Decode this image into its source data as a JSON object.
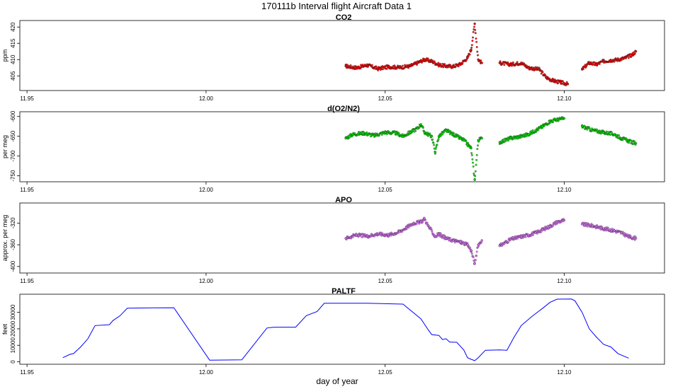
{
  "title": "170111b   Interval flight Aircraft Data 1",
  "colors": {
    "co2": "#ff0000",
    "o2n2": "#00e000",
    "apo": "#e070ff",
    "paltf": "#0000ff",
    "outline": "#202020"
  },
  "chart_data": [
    {
      "type": "scatter",
      "title": "CO2",
      "xlabel": "",
      "ylabel": "ppm",
      "xlim": [
        11.948,
        12.128
      ],
      "ylim": [
        400.5,
        422
      ],
      "x_ticks": [
        "11.95",
        "12.00",
        "12.05",
        "12.10"
      ],
      "y_ticks": [
        "405",
        "410",
        "415",
        "420"
      ],
      "series": [
        {
          "points": [
            [
              12.039,
              408.0
            ],
            [
              12.042,
              407.5
            ],
            [
              12.045,
              408.3
            ],
            [
              12.048,
              407.2
            ],
            [
              12.051,
              407.8
            ],
            [
              12.054,
              407.6
            ],
            [
              12.057,
              408.0
            ],
            [
              12.059,
              409.0
            ],
            [
              12.061,
              410.0
            ],
            [
              12.063,
              409.5
            ],
            [
              12.065,
              408.4
            ],
            [
              12.067,
              408.0
            ],
            [
              12.069,
              407.9
            ],
            [
              12.071,
              408.6
            ],
            [
              12.073,
              410.5
            ],
            [
              12.074,
              413.0
            ],
            [
              12.075,
              421.0
            ],
            [
              12.076,
              410.0
            ],
            [
              12.077,
              409.0
            ],
            [
              12.082,
              409.0
            ],
            [
              12.085,
              408.5
            ],
            [
              12.088,
              409.0
            ],
            [
              12.09,
              407.5
            ],
            [
              12.093,
              407.0
            ],
            [
              12.095,
              404.5
            ],
            [
              12.097,
              403.5
            ],
            [
              12.099,
              403.0
            ],
            [
              12.101,
              402.5
            ],
            [
              12.105,
              407.0
            ],
            [
              12.107,
              409.0
            ],
            [
              12.109,
              408.5
            ],
            [
              12.111,
              409.5
            ],
            [
              12.113,
              409.8
            ],
            [
              12.115,
              410.0
            ],
            [
              12.117,
              410.5
            ],
            [
              12.119,
              411.5
            ],
            [
              12.12,
              412.5
            ]
          ]
        }
      ]
    },
    {
      "type": "scatter",
      "title": "d(O2/N2)",
      "xlabel": "",
      "ylabel": "per meg",
      "xlim": [
        11.948,
        12.128
      ],
      "ylim": [
        -765,
        -588
      ],
      "x_ticks": [
        "11.95",
        "12.00",
        "12.05",
        "12.10"
      ],
      "y_ticks": [
        "-750",
        "-700",
        "-650",
        "-600"
      ],
      "series": [
        {
          "points": [
            [
              12.039,
              -655
            ],
            [
              12.041,
              -645
            ],
            [
              12.044,
              -642
            ],
            [
              12.047,
              -648
            ],
            [
              12.05,
              -640
            ],
            [
              12.053,
              -642
            ],
            [
              12.055,
              -650
            ],
            [
              12.057,
              -640
            ],
            [
              12.059,
              -630
            ],
            [
              12.06,
              -620
            ],
            [
              12.061,
              -640
            ],
            [
              12.063,
              -650
            ],
            [
              12.064,
              -690
            ],
            [
              12.065,
              -650
            ],
            [
              12.067,
              -635
            ],
            [
              12.069,
              -645
            ],
            [
              12.071,
              -655
            ],
            [
              12.072,
              -660
            ],
            [
              12.073,
              -670
            ],
            [
              12.074,
              -680
            ],
            [
              12.075,
              -760
            ],
            [
              12.076,
              -660
            ],
            [
              12.077,
              -655
            ],
            [
              12.082,
              -665
            ],
            [
              12.085,
              -655
            ],
            [
              12.088,
              -650
            ],
            [
              12.09,
              -645
            ],
            [
              12.092,
              -635
            ],
            [
              12.094,
              -625
            ],
            [
              12.096,
              -612
            ],
            [
              12.098,
              -608
            ],
            [
              12.1,
              -605
            ],
            [
              12.105,
              -625
            ],
            [
              12.108,
              -635
            ],
            [
              12.111,
              -640
            ],
            [
              12.114,
              -645
            ],
            [
              12.116,
              -655
            ],
            [
              12.118,
              -662
            ],
            [
              12.12,
              -668
            ]
          ]
        }
      ]
    },
    {
      "type": "scatter",
      "title": "APO",
      "xlabel": "",
      "ylabel": "approx. per meg",
      "xlim": [
        11.948,
        12.128
      ],
      "ylim": [
        -412,
        -283
      ],
      "x_ticks": [
        "11.95",
        "12.00",
        "12.05",
        "12.10"
      ],
      "y_ticks": [
        "-400",
        "-360",
        "-320"
      ],
      "series": [
        {
          "points": [
            [
              12.039,
              -348
            ],
            [
              12.042,
              -342
            ],
            [
              12.045,
              -344
            ],
            [
              12.048,
              -340
            ],
            [
              12.051,
              -342
            ],
            [
              12.054,
              -336
            ],
            [
              12.056,
              -328
            ],
            [
              12.058,
              -320
            ],
            [
              12.06,
              -318
            ],
            [
              12.061,
              -312
            ],
            [
              12.062,
              -325
            ],
            [
              12.064,
              -345
            ],
            [
              12.065,
              -340
            ],
            [
              12.067,
              -348
            ],
            [
              12.069,
              -352
            ],
            [
              12.071,
              -355
            ],
            [
              12.073,
              -360
            ],
            [
              12.074,
              -370
            ],
            [
              12.075,
              -395
            ],
            [
              12.076,
              -360
            ],
            [
              12.077,
              -352
            ],
            [
              12.082,
              -362
            ],
            [
              12.085,
              -350
            ],
            [
              12.088,
              -345
            ],
            [
              12.09,
              -342
            ],
            [
              12.092,
              -338
            ],
            [
              12.094,
              -332
            ],
            [
              12.096,
              -326
            ],
            [
              12.098,
              -318
            ],
            [
              12.1,
              -315
            ],
            [
              12.105,
              -322
            ],
            [
              12.108,
              -325
            ],
            [
              12.111,
              -330
            ],
            [
              12.114,
              -334
            ],
            [
              12.116,
              -338
            ],
            [
              12.118,
              -345
            ],
            [
              12.12,
              -348
            ]
          ]
        }
      ]
    },
    {
      "type": "line",
      "title": "PALTF",
      "xlabel": "day of year",
      "ylabel": "feet",
      "xlim": [
        11.948,
        12.128
      ],
      "ylim": [
        -1500,
        41000
      ],
      "x_ticks": [
        "11.95",
        "12.00",
        "12.05",
        "12.10"
      ],
      "y_ticks": [
        "0",
        "10000",
        "20000",
        "30000"
      ],
      "series": [
        {
          "points": [
            [
              11.96,
              2500
            ],
            [
              11.962,
              4500
            ],
            [
              11.963,
              5000
            ],
            [
              11.965,
              9000
            ],
            [
              11.967,
              14000
            ],
            [
              11.968,
              18000
            ],
            [
              11.969,
              22000
            ],
            [
              11.973,
              22500
            ],
            [
              11.974,
              25000
            ],
            [
              11.976,
              28000
            ],
            [
              11.978,
              32500
            ],
            [
              11.985,
              32700
            ],
            [
              11.991,
              32800
            ],
            [
              12.001,
              1000
            ],
            [
              12.01,
              1200
            ],
            [
              12.017,
              20500
            ],
            [
              12.019,
              21000
            ],
            [
              12.025,
              21000
            ],
            [
              12.028,
              28000
            ],
            [
              12.031,
              30500
            ],
            [
              12.033,
              35500
            ],
            [
              12.045,
              35500
            ],
            [
              12.055,
              35000
            ],
            [
              12.06,
              26000
            ],
            [
              12.062,
              19500
            ],
            [
              12.063,
              16500
            ],
            [
              12.065,
              16000
            ],
            [
              12.066,
              13500
            ],
            [
              12.067,
              14000
            ],
            [
              12.068,
              12000
            ],
            [
              12.07,
              11800
            ],
            [
              12.071,
              9500
            ],
            [
              12.072,
              7000
            ],
            [
              12.073,
              2500
            ],
            [
              12.074,
              1500
            ],
            [
              12.075,
              700
            ],
            [
              12.076,
              2500
            ],
            [
              12.078,
              7000
            ],
            [
              12.082,
              7200
            ],
            [
              12.084,
              7000
            ],
            [
              12.086,
              15000
            ],
            [
              12.088,
              22000
            ],
            [
              12.091,
              27500
            ],
            [
              12.094,
              32500
            ],
            [
              12.096,
              36000
            ],
            [
              12.098,
              38000
            ],
            [
              12.102,
              38100
            ],
            [
              12.103,
              37000
            ],
            [
              12.105,
              30000
            ],
            [
              12.107,
              20000
            ],
            [
              12.109,
              15000
            ],
            [
              12.111,
              10500
            ],
            [
              12.113,
              9000
            ],
            [
              12.115,
              5000
            ],
            [
              12.118,
              2200
            ]
          ]
        }
      ]
    }
  ]
}
